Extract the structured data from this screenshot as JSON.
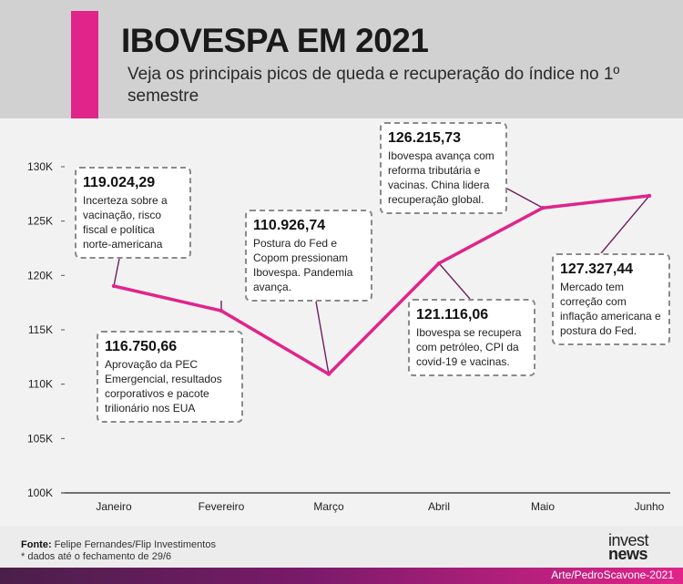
{
  "header": {
    "title": "IBOVESPA EM 2021",
    "subtitle": "Veja os principais picos de queda e recuperação do índice no 1º semestre"
  },
  "colors": {
    "accent": "#e0248a",
    "line": "#e0248a",
    "connector": "#6e1f5e",
    "bottom_bar": "#7a1a6a"
  },
  "chart_data": {
    "type": "line",
    "categories": [
      "Janeiro",
      "Fevereiro",
      "Março",
      "Abril",
      "Maio",
      "Junho"
    ],
    "series": [
      {
        "values": [
          119024.29,
          116750.66,
          110926.74,
          121116.06,
          126215.73,
          127327.44
        ]
      }
    ],
    "ylim": [
      100000,
      130000
    ],
    "y_ticks": [
      100000,
      105000,
      110000,
      115000,
      120000,
      125000,
      130000
    ],
    "y_tick_labels": [
      "100K",
      "105K",
      "110K",
      "115K",
      "120K",
      "125K",
      "130K"
    ],
    "grid": false,
    "annotations": [
      {
        "value": "119.024,29",
        "text": "Incerteza sobre a vacinação, risco fiscal e política norte-americana"
      },
      {
        "value": "116.750,66",
        "text": "Aprovação da PEC Emergencial, resultados corporativos e pacote trilionário nos EUA"
      },
      {
        "value": "110.926,74",
        "text": "Postura do Fed e Copom pressionam Ibovespa. Pandemia avança."
      },
      {
        "value": "121.116,06",
        "text": "Ibovespa se recupera com petróleo, CPI da covid-19 e vacinas."
      },
      {
        "value": "126.215,73",
        "text": "Ibovespa avança com reforma tributária e vacinas. China lidera recuperação global."
      },
      {
        "value": "127.327,44",
        "text": "Mercado tem correção com inflação americana e postura do Fed."
      }
    ]
  },
  "footer": {
    "source_label": "Fonte:",
    "source_text": " Felipe Fernandes/Flip Investimentos",
    "note": "* dados até o fechamento de 29/6",
    "logo_line1": "invest",
    "logo_line2": "news",
    "credit": "Arte/PedroScavone-2021"
  }
}
